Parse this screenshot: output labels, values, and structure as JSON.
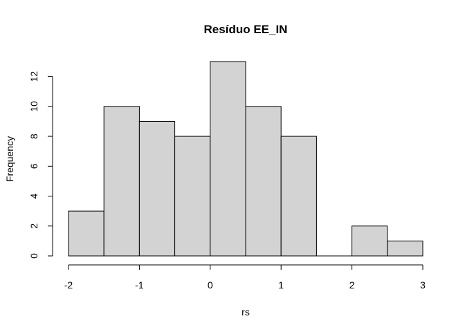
{
  "chart_data": {
    "type": "bar",
    "title": "Resíduo  EE_IN",
    "xlabel": "rs",
    "ylabel": "Frequency",
    "bins": [
      {
        "start": -2.0,
        "end": -1.5,
        "count": 3
      },
      {
        "start": -1.5,
        "end": -1.0,
        "count": 10
      },
      {
        "start": -1.0,
        "end": -0.5,
        "count": 9
      },
      {
        "start": -0.5,
        "end": 0.0,
        "count": 8
      },
      {
        "start": 0.0,
        "end": 0.5,
        "count": 13
      },
      {
        "start": 0.5,
        "end": 1.0,
        "count": 10
      },
      {
        "start": 1.0,
        "end": 1.5,
        "count": 8
      },
      {
        "start": 1.5,
        "end": 2.0,
        "count": 0
      },
      {
        "start": 2.0,
        "end": 2.5,
        "count": 2
      },
      {
        "start": 2.5,
        "end": 3.0,
        "count": 1
      }
    ],
    "xlim": [
      -2,
      3
    ],
    "ylim": [
      0,
      13
    ],
    "xticks": [
      "-2",
      "-1",
      "0",
      "1",
      "2",
      "3"
    ],
    "yticks": [
      "0",
      "2",
      "4",
      "6",
      "8",
      "10",
      "12"
    ],
    "bar_fill": "#d3d3d3",
    "bar_stroke": "#000000",
    "grid": false
  }
}
